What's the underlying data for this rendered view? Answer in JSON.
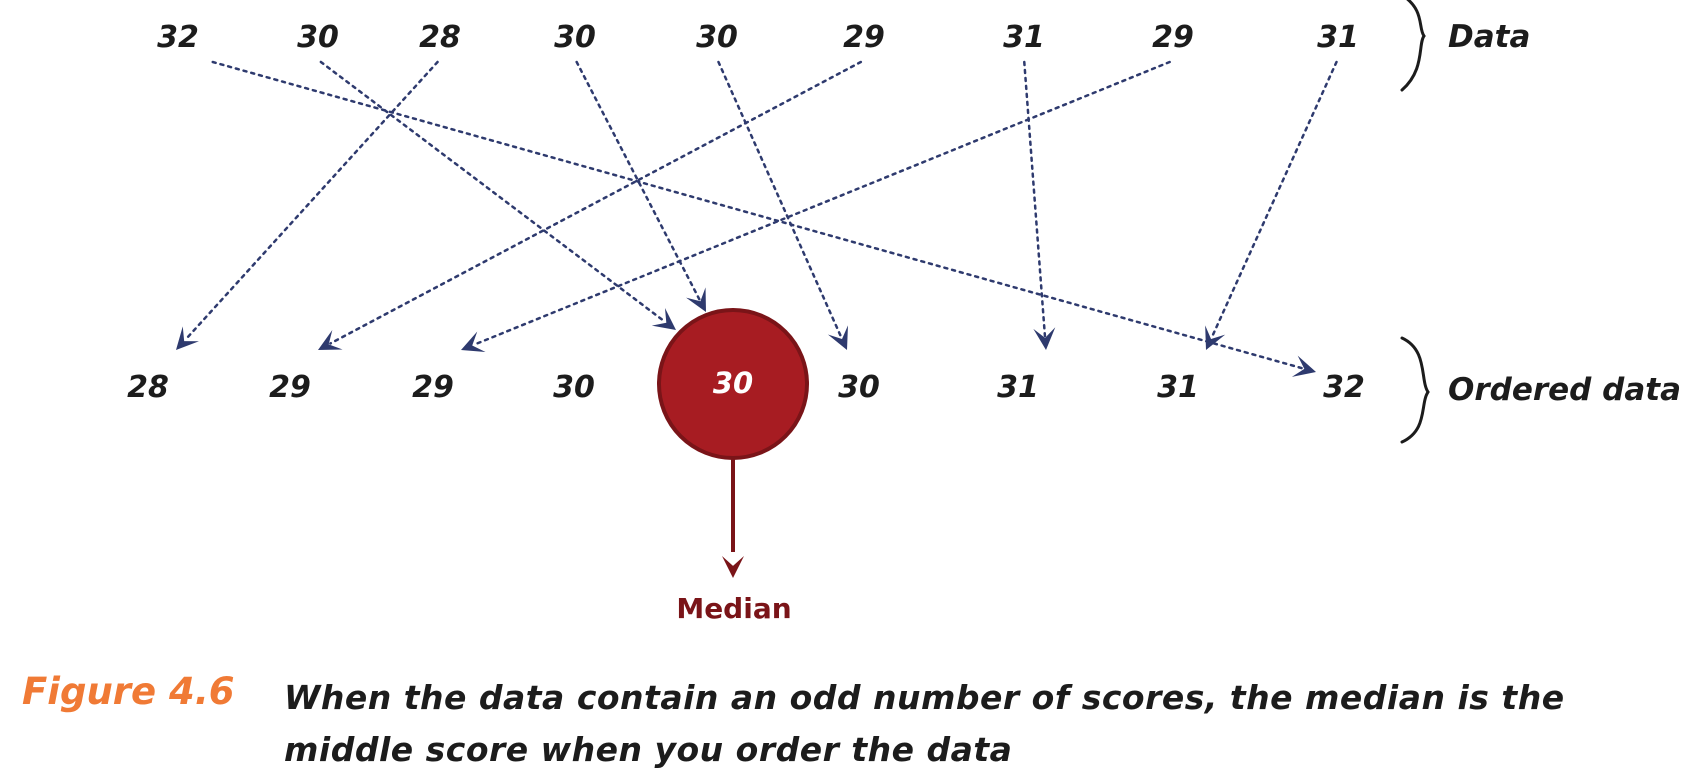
{
  "data_row": [
    {
      "value": "32",
      "sorted_index": 8
    },
    {
      "value": "30",
      "sorted_index": 4
    },
    {
      "value": "28",
      "sorted_index": 0
    },
    {
      "value": "30",
      "sorted_index": 3
    },
    {
      "value": "30",
      "sorted_index": 5
    },
    {
      "value": "29",
      "sorted_index": 1
    },
    {
      "value": "31",
      "sorted_index": 6
    },
    {
      "value": "29",
      "sorted_index": 2
    },
    {
      "value": "31",
      "sorted_index": 7
    }
  ],
  "ordered_row": [
    "28",
    "29",
    "29",
    "30",
    "30",
    "30",
    "31",
    "31",
    "32"
  ],
  "median_index": 4,
  "labels": {
    "data": "Data",
    "ordered": "Ordered data",
    "median": "Median"
  },
  "caption": {
    "figure": "Figure 4.6",
    "text": "When the data contain an odd number of scores, the median is the middle score when you order the data"
  },
  "colors": {
    "arrow": "#2e3a6e",
    "median_fill": "#a71c22",
    "median_stroke": "#7a1418",
    "figure_label": "#f07a35"
  }
}
